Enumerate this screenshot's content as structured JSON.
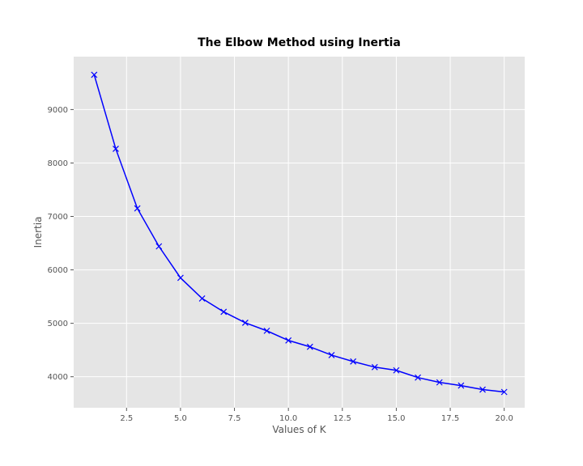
{
  "chart_data": {
    "type": "line",
    "title": "The Elbow Method using Inertia",
    "xlabel": "Values of K",
    "ylabel": "Inertia",
    "xlim": [
      0.05,
      20.95
    ],
    "ylim": [
      3420,
      9990
    ],
    "grid": true,
    "x_ticks": [
      2.5,
      5.0,
      7.5,
      10.0,
      12.5,
      15.0,
      17.5,
      20.0
    ],
    "x_tick_labels": [
      "2.5",
      "5.0",
      "7.5",
      "10.0",
      "12.5",
      "15.0",
      "17.5",
      "20.0"
    ],
    "y_ticks": [
      4000,
      5000,
      6000,
      7000,
      8000,
      9000
    ],
    "y_tick_labels": [
      "4000",
      "5000",
      "6000",
      "7000",
      "8000",
      "9000"
    ],
    "series": [
      {
        "marker": "x",
        "color": "#0000ff",
        "x": [
          1,
          2,
          3,
          4,
          5,
          6,
          7,
          8,
          9,
          10,
          11,
          12,
          13,
          14,
          15,
          16,
          17,
          18,
          19,
          20
        ],
        "y": [
          9650,
          8265,
          7150,
          6440,
          5850,
          5465,
          5215,
          5010,
          4860,
          4680,
          4560,
          4405,
          4285,
          4180,
          4120,
          3985,
          3895,
          3835,
          3760,
          3715
        ]
      }
    ]
  },
  "colors": {
    "plot_background": "#e5e5e5",
    "grid": "#ffffff",
    "line": "#0000ff"
  }
}
